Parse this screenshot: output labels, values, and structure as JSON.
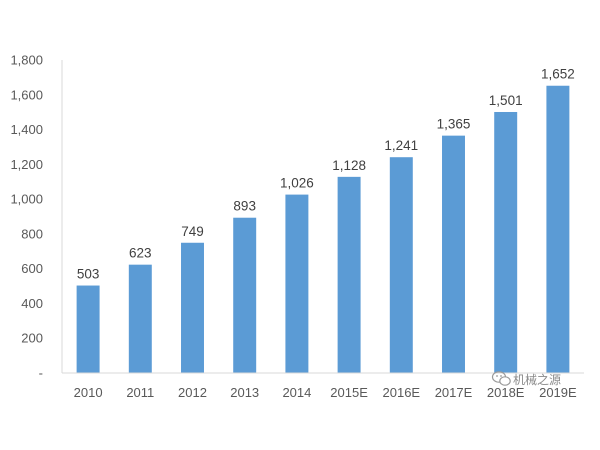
{
  "chart_data": {
    "type": "bar",
    "categories": [
      "2010",
      "2011",
      "2012",
      "2013",
      "2014",
      "2015E",
      "2016E",
      "2017E",
      "2018E",
      "2019E"
    ],
    "values": [
      503,
      623,
      749,
      893,
      1026,
      1128,
      1241,
      1365,
      1501,
      1652
    ],
    "data_labels": [
      "503",
      "623",
      "749",
      "893",
      "1,026",
      "1,128",
      "1,241",
      "1,365",
      "1,501",
      "1,652"
    ],
    "yticks": [
      "-",
      "200",
      "400",
      "600",
      "800",
      "1,000",
      "1,200",
      "1,400",
      "1,600",
      "1,800"
    ],
    "ylim": [
      0,
      1800
    ],
    "grid": false,
    "bar_color": "#5b9bd5",
    "title": "",
    "xlabel": "",
    "ylabel": ""
  },
  "watermark": {
    "text": "机械之源",
    "icon": "wechat-icon"
  }
}
